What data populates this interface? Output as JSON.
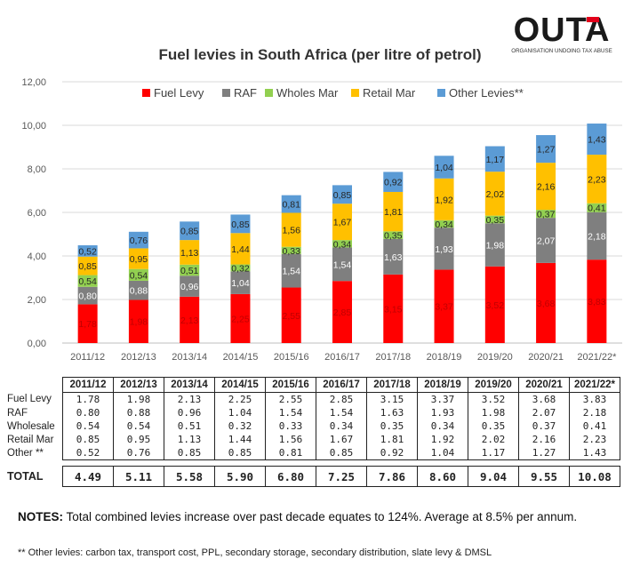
{
  "logo": {
    "text": "OUTA",
    "tagline": "ORGANISATION UNDOING TAX ABUSE"
  },
  "chart_data": {
    "type": "bar",
    "stacked": true,
    "title": "Fuel levies in South Africa (per litre of petrol)",
    "categories": [
      "2011/12",
      "2012/13",
      "2013/14",
      "2014/15",
      "2015/16",
      "2016/17",
      "2017/18",
      "2018/19",
      "2019/20",
      "2020/21",
      "2021/22*"
    ],
    "ylim": [
      0,
      12
    ],
    "yticks": [
      "0,00",
      "2,00",
      "4,00",
      "6,00",
      "8,00",
      "10,00",
      "12,00"
    ],
    "grid": true,
    "legend_position": "top",
    "series": [
      {
        "name": "Fuel Levy",
        "color": "#ff0000",
        "values": [
          1.78,
          1.98,
          2.13,
          2.25,
          2.55,
          2.85,
          3.15,
          3.37,
          3.52,
          3.68,
          3.83
        ],
        "labels": [
          "1,78",
          "1,98",
          "2,13",
          "2,25",
          "2,55",
          "2,85",
          "3,15",
          "3,37",
          "3,52",
          "3,68",
          "3,83"
        ]
      },
      {
        "name": "RAF",
        "color": "#7f7f7f",
        "values": [
          0.8,
          0.88,
          0.96,
          1.04,
          1.54,
          1.54,
          1.63,
          1.93,
          1.98,
          2.07,
          2.18
        ],
        "labels": [
          "0,80",
          "0,88",
          "0,96",
          "1,04",
          "1,54",
          "1,54",
          "1,63",
          "1,93",
          "1,98",
          "2,07",
          "2,18"
        ]
      },
      {
        "name": "Wholes Mar",
        "color": "#92d050",
        "values": [
          0.54,
          0.54,
          0.51,
          0.32,
          0.33,
          0.34,
          0.35,
          0.34,
          0.35,
          0.37,
          0.41
        ],
        "labels": [
          "0,54",
          "0,54",
          "0,51",
          "0,32",
          "0,33",
          "0,34",
          "0,35",
          "0,34",
          "0,35",
          "0,37",
          "0,41"
        ]
      },
      {
        "name": "Retail Mar",
        "color": "#ffc000",
        "values": [
          0.85,
          0.95,
          1.13,
          1.44,
          1.56,
          1.67,
          1.81,
          1.92,
          2.02,
          2.16,
          2.23
        ],
        "labels": [
          "0,85",
          "0,95",
          "1,13",
          "1,44",
          "1,56",
          "1,67",
          "1,81",
          "1,92",
          "2,02",
          "2,16",
          "2,23"
        ]
      },
      {
        "name": "Other Levies**",
        "color": "#5b9bd5",
        "values": [
          0.52,
          0.76,
          0.85,
          0.85,
          0.81,
          0.85,
          0.92,
          1.04,
          1.17,
          1.27,
          1.43
        ],
        "labels": [
          "0,52",
          "0,76",
          "0,85",
          "0,85",
          "0,81",
          "0,85",
          "0,92",
          "1,04",
          "1,17",
          "1,27",
          "1,43"
        ]
      }
    ]
  },
  "table": {
    "header": [
      "2011/12",
      "2012/13",
      "2013/14",
      "2014/15",
      "2015/16",
      "2016/17",
      "2017/18",
      "2018/19",
      "2019/20",
      "2020/21",
      "2021/22*"
    ],
    "rows": [
      {
        "label": "Fuel Levy",
        "cells": [
          "1.78",
          "1.98",
          "2.13",
          "2.25",
          "2.55",
          "2.85",
          "3.15",
          "3.37",
          "3.52",
          "3.68",
          "3.83"
        ]
      },
      {
        "label": "RAF",
        "cells": [
          "0.80",
          "0.88",
          "0.96",
          "1.04",
          "1.54",
          "1.54",
          "1.63",
          "1.93",
          "1.98",
          "2.07",
          "2.18"
        ]
      },
      {
        "label": "Wholesale",
        "cells": [
          "0.54",
          "0.54",
          "0.51",
          "0.32",
          "0.33",
          "0.34",
          "0.35",
          "0.34",
          "0.35",
          "0.37",
          "0.41"
        ]
      },
      {
        "label": "Retail Mar",
        "cells": [
          "0.85",
          "0.95",
          "1.13",
          "1.44",
          "1.56",
          "1.67",
          "1.81",
          "1.92",
          "2.02",
          "2.16",
          "2.23"
        ]
      },
      {
        "label": "Other **",
        "cells": [
          "0.52",
          "0.76",
          "0.85",
          "0.85",
          "0.81",
          "0.85",
          "0.92",
          "1.04",
          "1.17",
          "1.27",
          "1.43"
        ]
      }
    ],
    "total": {
      "label": "TOTAL",
      "cells": [
        "4.49",
        "5.11",
        "5.58",
        "5.90",
        "6.80",
        "7.25",
        "7.86",
        "8.60",
        "9.04",
        "9.55",
        "10.08"
      ]
    }
  },
  "notes": {
    "label": "NOTES:",
    "text": "Total combined levies increase over past decade equates to 124%.  Average at 8.5% per annum."
  },
  "footnote": "** Other  levies: carbon tax, transport cost, PPL, secondary storage,  secondary distribution, slate levy & DMSL"
}
